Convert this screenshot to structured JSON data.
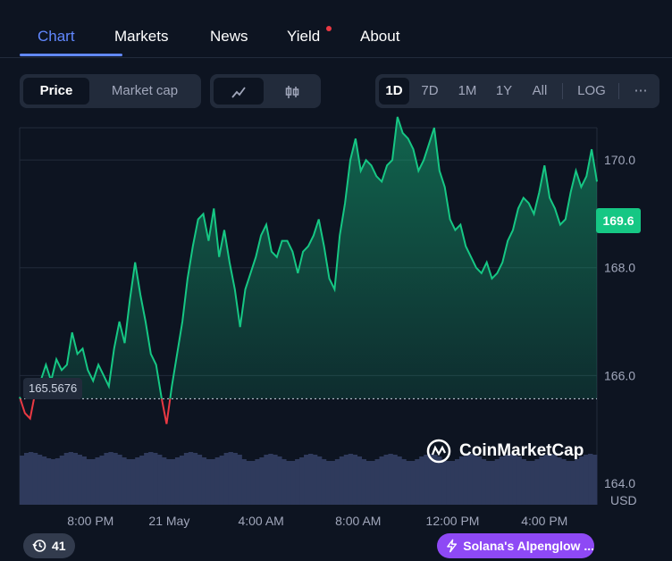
{
  "tabs": [
    {
      "label": "Chart",
      "active": true
    },
    {
      "label": "Markets",
      "active": false
    },
    {
      "label": "News",
      "active": false
    },
    {
      "label": "Yield",
      "active": false
    },
    {
      "label": "About",
      "active": false
    }
  ],
  "toolbar": {
    "metric": [
      "Price",
      "Market cap"
    ],
    "selected_metric": "Price",
    "chart_styles": [
      "line-chart-icon",
      "candlestick-icon"
    ],
    "ranges": [
      "1D",
      "7D",
      "1M",
      "1Y",
      "All"
    ],
    "selected_range": "1D",
    "log_label": "LOG",
    "more_label": "⋯"
  },
  "current_price": "169.6",
  "reference_price": "165.5676",
  "watermark": "CoinMarketCap",
  "currency": "USD",
  "bottom": {
    "counter": "41",
    "news_pill": "Solana's Alpenglow ..."
  },
  "colors": {
    "up": "#16c784",
    "down": "#ea3943",
    "accent": "#6188ff",
    "news": "#8e49f5"
  },
  "chart_data": {
    "type": "area",
    "title": "",
    "xlabel": "",
    "ylabel": "",
    "y_ticks": [
      "170.0",
      "168.0",
      "166.0",
      "164.0"
    ],
    "x_ticks": [
      "8:00 PM",
      "21 May",
      "4:00 AM",
      "8:00 AM",
      "12:00 PM",
      "4:00 PM"
    ],
    "ylim": [
      163.6,
      170.6
    ],
    "reference_value": 165.5676,
    "volume_bars": true,
    "series": [
      {
        "points": [
          [
            0,
            165.6
          ],
          [
            0.2,
            165.3
          ],
          [
            0.4,
            165.2
          ],
          [
            0.6,
            165.7
          ],
          [
            0.8,
            165.9
          ],
          [
            1.0,
            166.2
          ],
          [
            1.2,
            165.9
          ],
          [
            1.4,
            166.3
          ],
          [
            1.6,
            166.1
          ],
          [
            1.8,
            166.2
          ],
          [
            2.0,
            166.8
          ],
          [
            2.2,
            166.4
          ],
          [
            2.4,
            166.5
          ],
          [
            2.6,
            166.1
          ],
          [
            2.8,
            165.9
          ],
          [
            3.0,
            166.2
          ],
          [
            3.2,
            166.0
          ],
          [
            3.4,
            165.8
          ],
          [
            3.6,
            166.5
          ],
          [
            3.8,
            167.0
          ],
          [
            4.0,
            166.6
          ],
          [
            4.2,
            167.4
          ],
          [
            4.4,
            168.1
          ],
          [
            4.6,
            167.5
          ],
          [
            4.8,
            167.0
          ],
          [
            5.0,
            166.4
          ],
          [
            5.2,
            166.2
          ],
          [
            5.4,
            165.6
          ],
          [
            5.6,
            165.1
          ],
          [
            5.8,
            165.8
          ],
          [
            6.0,
            166.4
          ],
          [
            6.2,
            167.0
          ],
          [
            6.4,
            167.8
          ],
          [
            6.6,
            168.4
          ],
          [
            6.8,
            168.9
          ],
          [
            7.0,
            169.0
          ],
          [
            7.2,
            168.5
          ],
          [
            7.4,
            169.1
          ],
          [
            7.6,
            168.2
          ],
          [
            7.8,
            168.7
          ],
          [
            8.0,
            168.1
          ],
          [
            8.2,
            167.6
          ],
          [
            8.4,
            166.9
          ],
          [
            8.6,
            167.6
          ],
          [
            8.8,
            167.9
          ],
          [
            9.0,
            168.2
          ],
          [
            9.2,
            168.6
          ],
          [
            9.4,
            168.8
          ],
          [
            9.6,
            168.3
          ],
          [
            9.8,
            168.2
          ],
          [
            10.0,
            168.5
          ],
          [
            10.2,
            168.5
          ],
          [
            10.4,
            168.3
          ],
          [
            10.6,
            167.9
          ],
          [
            10.8,
            168.3
          ],
          [
            11.0,
            168.4
          ],
          [
            11.2,
            168.6
          ],
          [
            11.4,
            168.9
          ],
          [
            11.6,
            168.4
          ],
          [
            11.8,
            167.8
          ],
          [
            12.0,
            167.6
          ],
          [
            12.2,
            168.6
          ],
          [
            12.4,
            169.2
          ],
          [
            12.6,
            170.0
          ],
          [
            12.8,
            170.4
          ],
          [
            13.0,
            169.8
          ],
          [
            13.2,
            170.0
          ],
          [
            13.4,
            169.9
          ],
          [
            13.6,
            169.7
          ],
          [
            13.8,
            169.6
          ],
          [
            14.0,
            169.9
          ],
          [
            14.2,
            170.0
          ],
          [
            14.4,
            170.8
          ],
          [
            14.6,
            170.5
          ],
          [
            14.8,
            170.4
          ],
          [
            15.0,
            170.2
          ],
          [
            15.2,
            169.8
          ],
          [
            15.4,
            170.0
          ],
          [
            15.6,
            170.3
          ],
          [
            15.8,
            170.6
          ],
          [
            16.0,
            169.8
          ],
          [
            16.2,
            169.5
          ],
          [
            16.4,
            168.9
          ],
          [
            16.6,
            168.7
          ],
          [
            16.8,
            168.8
          ],
          [
            17.0,
            168.4
          ],
          [
            17.2,
            168.2
          ],
          [
            17.4,
            168.0
          ],
          [
            17.6,
            167.9
          ],
          [
            17.8,
            168.1
          ],
          [
            18.0,
            167.8
          ],
          [
            18.2,
            167.9
          ],
          [
            18.4,
            168.1
          ],
          [
            18.6,
            168.5
          ],
          [
            18.8,
            168.7
          ],
          [
            19.0,
            169.1
          ],
          [
            19.2,
            169.3
          ],
          [
            19.4,
            169.2
          ],
          [
            19.6,
            169.0
          ],
          [
            19.8,
            169.4
          ],
          [
            20.0,
            169.9
          ],
          [
            20.2,
            169.3
          ],
          [
            20.4,
            169.1
          ],
          [
            20.6,
            168.8
          ],
          [
            20.8,
            168.9
          ],
          [
            21.0,
            169.4
          ],
          [
            21.2,
            169.8
          ],
          [
            21.4,
            169.5
          ],
          [
            21.6,
            169.7
          ],
          [
            21.8,
            170.2
          ],
          [
            22.0,
            169.6
          ]
        ]
      }
    ]
  }
}
